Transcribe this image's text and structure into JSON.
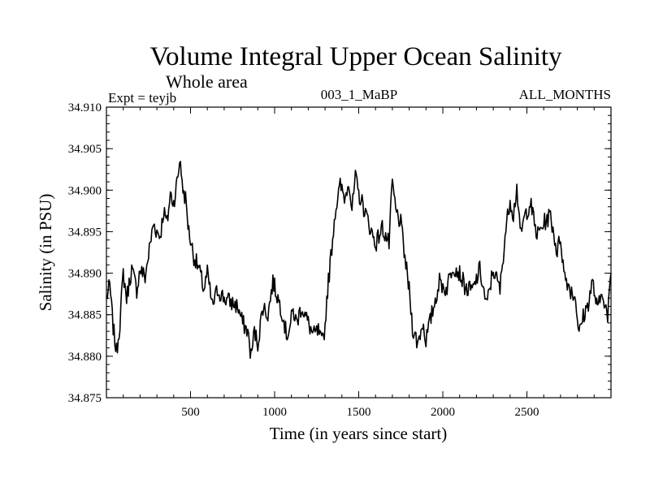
{
  "chart_data": {
    "type": "line",
    "title": "Volume Integral Upper Ocean Salinity",
    "subtitle": "Whole area",
    "experiment_label": "Expt = teyjb",
    "run_label": "003_1_MaBP",
    "months_label": "ALL_MONTHS",
    "xlabel": "Time (in years since start)",
    "ylabel": "Salinity (in PSU)",
    "xlim": [
      0,
      3000
    ],
    "ylim": [
      34.875,
      34.91
    ],
    "xticks": [
      500,
      1000,
      1500,
      2000,
      2500
    ],
    "xtick_labels": [
      "500",
      "1000",
      "1500",
      "2000",
      "2500"
    ],
    "yticks": [
      34.875,
      34.88,
      34.885,
      34.89,
      34.895,
      34.9,
      34.905,
      34.91
    ],
    "ytick_labels": [
      "34.875",
      "34.880",
      "34.885",
      "34.890",
      "34.895",
      "34.900",
      "34.905",
      "34.910"
    ],
    "grid": false,
    "line_color": "#000000",
    "series": [
      {
        "name": "salinity",
        "x": [
          0,
          20,
          40,
          60,
          80,
          100,
          120,
          150,
          180,
          200,
          230,
          260,
          280,
          300,
          320,
          340,
          360,
          380,
          400,
          420,
          440,
          450,
          470,
          490,
          520,
          550,
          580,
          600,
          630,
          660,
          700,
          740,
          780,
          810,
          840,
          860,
          880,
          900,
          930,
          960,
          990,
          1020,
          1050,
          1070,
          1090,
          1110,
          1130,
          1160,
          1200,
          1230,
          1260,
          1280,
          1300,
          1310,
          1330,
          1360,
          1390,
          1420,
          1440,
          1460,
          1480,
          1500,
          1520,
          1560,
          1600,
          1640,
          1680,
          1700,
          1720,
          1750,
          1780,
          1800,
          1820,
          1850,
          1880,
          1900,
          1940,
          1980,
          2020,
          2060,
          2100,
          2140,
          2180,
          2220,
          2260,
          2300,
          2340,
          2370,
          2400,
          2420,
          2440,
          2460,
          2490,
          2520,
          2560,
          2600,
          2640,
          2680,
          2700,
          2720,
          2760,
          2790,
          2810,
          2830,
          2860,
          2890,
          2920,
          2950,
          2980,
          3000
        ],
        "values": [
          34.887,
          34.8885,
          34.8835,
          34.8805,
          34.884,
          34.89,
          34.887,
          34.8905,
          34.888,
          34.8905,
          34.8895,
          34.8935,
          34.896,
          34.895,
          34.8945,
          34.8975,
          34.896,
          34.8995,
          34.8985,
          34.901,
          34.904,
          34.9005,
          34.899,
          34.895,
          34.892,
          34.8905,
          34.888,
          34.89,
          34.886,
          34.888,
          34.887,
          34.8865,
          34.886,
          34.884,
          34.883,
          34.88,
          34.883,
          34.8815,
          34.886,
          34.885,
          34.889,
          34.887,
          34.885,
          34.8825,
          34.8835,
          34.8855,
          34.884,
          34.886,
          34.884,
          34.8825,
          34.883,
          34.8815,
          34.8835,
          34.887,
          34.891,
          34.8975,
          34.9005,
          34.899,
          34.9015,
          34.8975,
          34.9015,
          34.8995,
          34.8985,
          34.896,
          34.8935,
          34.8955,
          34.8935,
          34.901,
          34.8975,
          34.896,
          34.891,
          34.888,
          34.8835,
          34.8815,
          34.884,
          34.882,
          34.8855,
          34.889,
          34.888,
          34.891,
          34.89,
          34.888,
          34.888,
          34.8905,
          34.886,
          34.8905,
          34.888,
          34.8945,
          34.899,
          34.897,
          34.9005,
          34.8945,
          34.897,
          34.8985,
          34.8945,
          34.896,
          34.897,
          34.8925,
          34.8945,
          34.89,
          34.888,
          34.887,
          34.8825,
          34.8845,
          34.886,
          34.889,
          34.8855,
          34.888,
          34.8845,
          34.89
        ]
      }
    ]
  }
}
